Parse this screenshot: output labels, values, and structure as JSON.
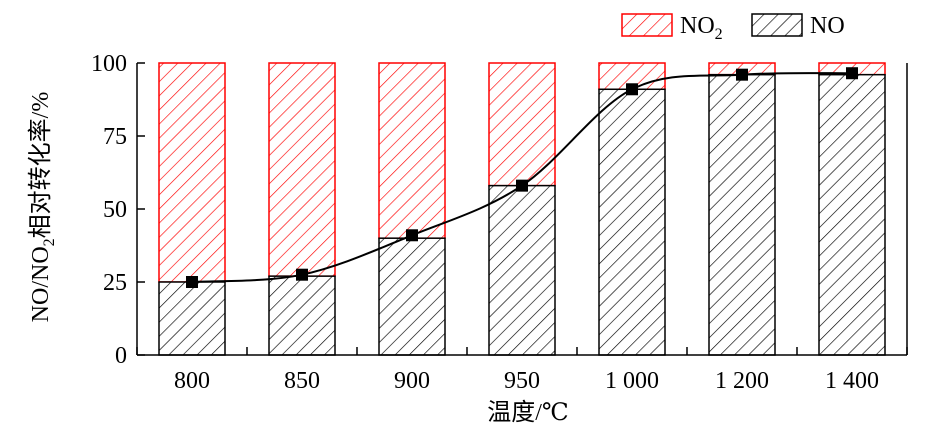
{
  "chart_data": {
    "type": "bar",
    "stacked": true,
    "categories": [
      "800",
      "850",
      "900",
      "950",
      "1 000",
      "1 200",
      "1 400"
    ],
    "series": [
      {
        "name": "NO",
        "values": [
          25,
          27,
          40,
          58,
          91,
          96,
          96
        ],
        "color": "#000000",
        "pattern": "hatch"
      },
      {
        "name": "NO2",
        "values": [
          75,
          73,
          60,
          42,
          9,
          4,
          4
        ],
        "color": "#ff0000",
        "pattern": "hatch"
      }
    ],
    "line": {
      "values": [
        25,
        27.5,
        41,
        58,
        91,
        96,
        96.5
      ],
      "marker": "square",
      "color": "#000000"
    },
    "xlabel": "温度/℃",
    "ylabel": {
      "prefix": "NO/NO",
      "sub": "2",
      "suffix": "相对转化率/%"
    },
    "ylim": [
      0,
      100
    ],
    "yticks": [
      "0",
      "25",
      "50",
      "75",
      "100"
    ],
    "legend": {
      "position": "top-right",
      "items": [
        {
          "base": "NO",
          "sub": "2",
          "color": "#ff0000"
        },
        {
          "base": "NO",
          "sub": "",
          "color": "#000000"
        }
      ]
    }
  }
}
